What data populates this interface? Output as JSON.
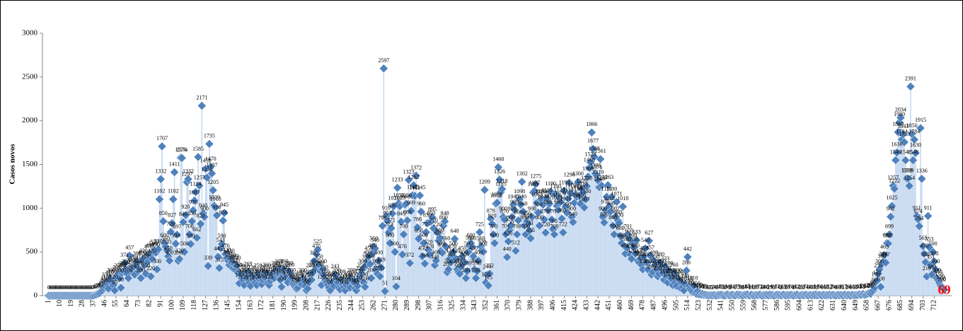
{
  "chart_data": {
    "type": "scatter",
    "y_label": "Casos novos",
    "color": "#4f81bd",
    "drop_line_color": "#c6d9f1",
    "last_label_color": "#ff0000",
    "xlim": [
      -4,
      726
    ],
    "ylim": [
      0,
      3000
    ],
    "yticks": [
      0,
      500,
      1000,
      1500,
      2000,
      2500,
      3000
    ],
    "xticks": [
      1,
      10,
      19,
      28,
      37,
      46,
      55,
      64,
      73,
      82,
      91,
      100,
      109,
      118,
      127,
      136,
      145,
      154,
      163,
      172,
      181,
      190,
      199,
      208,
      217,
      226,
      235,
      244,
      253,
      262,
      271,
      280,
      289,
      298,
      307,
      316,
      325,
      334,
      343,
      352,
      361,
      370,
      379,
      388,
      397,
      406,
      415,
      424,
      433,
      442,
      451,
      460,
      469,
      478,
      487,
      496,
      505,
      514,
      523,
      532,
      541,
      550,
      559,
      568,
      577,
      586,
      595,
      604,
      613,
      622,
      631,
      640,
      649,
      658,
      667,
      676,
      685,
      694,
      703,
      712
    ],
    "x": [
      1,
      2,
      3,
      4,
      5,
      6,
      7,
      8,
      9,
      10,
      11,
      12,
      13,
      14,
      15,
      16,
      17,
      18,
      19,
      20,
      21,
      22,
      23,
      24,
      25,
      26,
      27,
      28,
      29,
      30,
      31,
      32,
      33,
      34,
      35,
      36,
      37,
      38,
      39,
      40,
      41,
      42,
      43,
      44,
      45,
      46,
      47,
      48,
      49,
      50,
      51,
      52,
      53,
      54,
      55,
      56,
      57,
      58,
      59,
      60,
      61,
      62,
      63,
      64,
      65,
      66,
      67,
      68,
      69,
      70,
      71,
      72,
      73,
      74,
      75,
      76,
      77,
      78,
      79,
      80,
      81,
      82,
      83,
      84,
      85,
      86,
      87,
      88,
      89,
      90,
      91,
      92,
      93,
      94,
      95,
      96,
      97,
      98,
      99,
      100,
      101,
      102,
      103,
      104,
      105,
      106,
      107,
      108,
      109,
      110,
      111,
      112,
      113,
      114,
      115,
      116,
      117,
      118,
      119,
      120,
      121,
      122,
      123,
      124,
      125,
      126,
      127,
      128,
      129,
      130,
      131,
      132,
      133,
      134,
      135,
      136,
      137,
      138,
      139,
      140,
      141,
      142,
      143,
      144,
      145,
      146,
      147,
      148,
      149,
      150,
      151,
      152,
      153,
      154,
      155,
      156,
      157,
      158,
      159,
      160,
      161,
      162,
      163,
      164,
      165,
      166,
      167,
      168,
      169,
      170,
      171,
      172,
      173,
      174,
      175,
      176,
      177,
      178,
      179,
      180,
      181,
      182,
      183,
      184,
      185,
      186,
      187,
      188,
      189,
      190,
      191,
      192,
      193,
      194,
      195,
      196,
      197,
      198,
      199,
      200,
      201,
      202,
      203,
      204,
      205,
      206,
      207,
      208,
      209,
      210,
      211,
      212,
      213,
      214,
      215,
      216,
      217,
      218,
      219,
      220,
      221,
      222,
      223,
      224,
      225,
      226,
      227,
      228,
      229,
      230,
      231,
      232,
      233,
      234,
      235,
      236,
      237,
      238,
      239,
      240,
      241,
      242,
      243,
      244,
      245,
      246,
      247,
      248,
      249,
      250,
      251,
      252,
      253,
      254,
      255,
      256,
      257,
      258,
      259,
      260,
      261,
      262,
      263,
      264,
      265,
      266,
      267,
      268,
      269,
      270,
      271,
      272,
      273,
      274,
      275,
      276,
      277,
      278,
      279,
      280,
      281,
      282,
      283,
      284,
      285,
      286,
      287,
      288,
      289,
      290,
      291,
      292,
      293,
      294,
      295,
      296,
      297,
      298,
      299,
      300,
      301,
      302,
      303,
      304,
      305,
      306,
      307,
      308,
      309,
      310,
      311,
      312,
      313,
      314,
      315,
      316,
      317,
      318,
      319,
      320,
      321,
      322,
      323,
      324,
      325,
      326,
      327,
      328,
      329,
      330,
      331,
      332,
      333,
      334,
      335,
      336,
      337,
      338,
      339,
      340,
      341,
      342,
      343,
      344,
      345,
      346,
      347,
      348,
      349,
      350,
      351,
      352,
      353,
      354,
      355,
      356,
      357,
      358,
      359,
      360,
      361,
      362,
      363,
      364,
      365,
      366,
      367,
      368,
      369,
      370,
      371,
      372,
      373,
      374,
      375,
      376,
      377,
      378,
      379,
      380,
      381,
      382,
      383,
      384,
      385,
      386,
      387,
      388,
      389,
      390,
      391,
      392,
      393,
      394,
      395,
      396,
      397,
      398,
      399,
      400,
      401,
      402,
      403,
      404,
      405,
      406,
      407,
      408,
      409,
      410,
      411,
      412,
      413,
      414,
      415,
      416,
      417,
      418,
      419,
      420,
      421,
      422,
      423,
      424,
      425,
      426,
      427,
      428,
      429,
      430,
      431,
      432,
      433,
      434,
      435,
      436,
      437,
      438,
      439,
      440,
      441,
      442,
      443,
      444,
      445,
      446,
      447,
      448,
      449,
      450,
      451,
      452,
      453,
      454,
      455,
      456,
      457,
      458,
      459,
      460,
      461,
      462,
      463,
      464,
      465,
      466,
      467,
      468,
      469,
      470,
      471,
      472,
      473,
      474,
      475,
      476,
      477,
      478,
      479,
      480,
      481,
      482,
      483,
      484,
      485,
      486,
      487,
      488,
      489,
      490,
      491,
      492,
      493,
      494,
      495,
      496,
      497,
      498,
      499,
      500,
      501,
      502,
      503,
      504,
      505,
      506,
      507,
      508,
      509,
      510,
      511,
      512,
      513,
      514,
      515,
      516,
      517,
      518,
      519,
      520,
      521,
      522,
      523,
      524,
      525,
      526,
      527,
      528,
      529,
      530,
      531,
      532,
      533,
      534,
      535,
      536,
      537,
      538,
      539,
      540,
      541,
      542,
      543,
      544,
      545,
      546,
      547,
      548,
      549,
      550,
      551,
      552,
      553,
      554,
      555,
      556,
      557,
      558,
      559,
      560,
      561,
      562,
      563,
      564,
      565,
      566,
      567,
      568,
      569,
      570,
      571,
      572,
      573,
      574,
      575,
      576,
      577,
      578,
      579,
      580,
      581,
      582,
      583,
      584,
      585,
      586,
      587,
      588,
      589,
      590,
      591,
      592,
      593,
      594,
      595,
      596,
      597,
      598,
      599,
      600,
      601,
      602,
      603,
      604,
      605,
      606,
      607,
      608,
      609,
      610,
      611,
      612,
      613,
      614,
      615,
      616,
      617,
      618,
      619,
      620,
      621,
      622,
      623,
      624,
      625,
      626,
      627,
      628,
      629,
      630,
      631,
      632,
      633,
      634,
      635,
      636,
      637,
      638,
      639,
      640,
      641,
      642,
      643,
      644,
      645,
      646,
      647,
      648,
      649,
      650,
      651,
      652,
      653,
      654,
      655,
      656,
      657,
      658,
      659,
      660,
      661,
      662,
      663,
      664,
      665,
      666,
      667,
      668,
      669,
      670,
      671,
      672,
      673,
      674,
      675,
      676,
      677,
      678,
      679,
      680,
      681,
      682,
      683,
      684,
      685,
      686,
      687,
      688,
      689,
      690,
      691,
      692,
      693,
      694,
      695,
      696,
      697,
      698,
      699,
      700,
      701,
      702,
      703,
      704,
      705,
      706,
      707,
      708,
      709,
      710,
      711,
      712,
      713,
      714,
      715,
      716,
      717,
      718,
      719,
      720
    ],
    "values": [
      0,
      0,
      0,
      0,
      0,
      0,
      0,
      0,
      0,
      0,
      0,
      0,
      0,
      0,
      0,
      0,
      0,
      0,
      0,
      0,
      0,
      0,
      0,
      0,
      0,
      0,
      0,
      0,
      0,
      0,
      0,
      0,
      0,
      0,
      0,
      0,
      3,
      8,
      12,
      20,
      25,
      30,
      45,
      60,
      90,
      110,
      150,
      130,
      80,
      170,
      200,
      180,
      120,
      60,
      210,
      230,
      250,
      200,
      90,
      260,
      280,
      371,
      300,
      250,
      200,
      457,
      310,
      290,
      330,
      240,
      350,
      390,
      280,
      300,
      200,
      400,
      420,
      350,
      250,
      380,
      470,
      480,
      220,
      420,
      500,
      520,
      490,
      300,
      530,
      1102,
      1332,
      1707,
      850,
      600,
      560,
      520,
      450,
      400,
      728,
      827,
      1102,
      1411,
      594,
      697,
      396,
      420,
      1576,
      1574,
      840,
      500,
      920,
      1297,
      1332,
      700,
      590,
      850,
      976,
      1087,
      1184,
      662,
      1585,
      1257,
      820,
      2171,
      940,
      900,
      1450,
      1350,
      339,
      1735,
      1470,
      1397,
      1205,
      1029,
      1010,
      918,
      445,
      315,
      543,
      590,
      858,
      945,
      476,
      430,
      400,
      350,
      420,
      370,
      312,
      360,
      300,
      340,
      260,
      140,
      250,
      200,
      180,
      120,
      240,
      200,
      269,
      150,
      110,
      230,
      180,
      200,
      150,
      120,
      250,
      190,
      210,
      130,
      180,
      240,
      200,
      260,
      150,
      120,
      170,
      210,
      240,
      200,
      280,
      250,
      260,
      300,
      180,
      100,
      230,
      300,
      250,
      200,
      150,
      280,
      260,
      200,
      140,
      120,
      100,
      80,
      90,
      150,
      170,
      130,
      200,
      170,
      110,
      60,
      80,
      150,
      250,
      180,
      260,
      395,
      300,
      475,
      525,
      350,
      280,
      120,
      300,
      230,
      180,
      150,
      120,
      90,
      60,
      140,
      160,
      110,
      243,
      200,
      150,
      90,
      70,
      180,
      130,
      100,
      60,
      120,
      160,
      140,
      90,
      200,
      170,
      150,
      80,
      60,
      110,
      190,
      220,
      250,
      300,
      150,
      100,
      350,
      400,
      450,
      360,
      200,
      480,
      560,
      540,
      300,
      250,
      400,
      220,
      319,
      798,
      2597,
      51,
      910,
      853,
      723,
      600,
      771,
      939,
      1021,
      500,
      104,
      1233,
      1055,
      1023,
      845,
      470,
      700,
      1040,
      1050,
      860,
      1323,
      372,
      969,
      1147,
      1262,
      1141,
      1372,
      780,
      650,
      1145,
      960,
      450,
      600,
      366,
      725,
      830,
      520,
      470,
      850,
      895,
      770,
      348,
      400,
      720,
      628,
      660,
      510,
      490,
      800,
      848,
      560,
      267,
      300,
      424,
      380,
      470,
      500,
      648,
      420,
      300,
      270,
      250,
      330,
      450,
      400,
      380,
      200,
      280,
      500,
      569,
      600,
      560,
      450,
      300,
      200,
      280,
      400,
      725,
      560,
      520,
      502,
      1209,
      150,
      240,
      115,
      252,
      878,
      820,
      700,
      600,
      1052,
      1062,
      1468,
      1326,
      1185,
      1219,
      900,
      870,
      701,
      440,
      620,
      750,
      800,
      900,
      1040,
      980,
      512,
      700,
      860,
      1098,
      1040,
      1302,
      960,
      800,
      700,
      850,
      820,
      741,
      655,
      900,
      1181,
      1197,
      1275,
      1063,
      950,
      800,
      1100,
      1094,
      1040,
      870,
      720,
      1110,
      980,
      1050,
      1190,
      870,
      760,
      700,
      1160,
      1025,
      980,
      1120,
      1070,
      880,
      722,
      1199,
      1016,
      950,
      1110,
      1290,
      1170,
      900,
      840,
      1060,
      1160,
      1130,
      1300,
      1140,
      1050,
      1220,
      1181,
      1007,
      1100,
      1250,
      1360,
      1460,
      1523,
      1866,
      1677,
      1588,
      1395,
      1376,
      1319,
      1240,
      1561,
      1259,
      900,
      836,
      977,
      1130,
      1263,
      1018,
      960,
      1130,
      800,
      700,
      902,
      1071,
      860,
      830,
      680,
      600,
      1018,
      570,
      480,
      550,
      701,
      650,
      470,
      420,
      600,
      550,
      480,
      633,
      400,
      380,
      420,
      350,
      300,
      450,
      540,
      380,
      300,
      627,
      457,
      240,
      270,
      400,
      350,
      300,
      220,
      250,
      380,
      300,
      260,
      180,
      333,
      220,
      150,
      280,
      200,
      190,
      120,
      260,
      150,
      110,
      200,
      180,
      90,
      150,
      100,
      60,
      130,
      286,
      442,
      110,
      80,
      60,
      40,
      110,
      30,
      20,
      50,
      15,
      30,
      10,
      20,
      8,
      12,
      5,
      6,
      0,
      3,
      5,
      2,
      8,
      4,
      0,
      6,
      10,
      7,
      12,
      5,
      3,
      0,
      9,
      14,
      6,
      2,
      8,
      11,
      4,
      0,
      7,
      13,
      5,
      9,
      3,
      0,
      6,
      10,
      8,
      15,
      4,
      2,
      11,
      6,
      0,
      3,
      9,
      5,
      7,
      12,
      3,
      0,
      8,
      4,
      10,
      6,
      2,
      14,
      5,
      9,
      0,
      3,
      7,
      11,
      4,
      8,
      2,
      6,
      13,
      5,
      0,
      9,
      3,
      7,
      10,
      4,
      1,
      8,
      6,
      12,
      3,
      0,
      5,
      9,
      2,
      7,
      11,
      4,
      0,
      8,
      6,
      3,
      10,
      5,
      14,
      2,
      7,
      9,
      4,
      0,
      11,
      6,
      3,
      8,
      5,
      12,
      2,
      7,
      9,
      4,
      0,
      6,
      10,
      3,
      8,
      5,
      1,
      13,
      7,
      2,
      9,
      4,
      0,
      11,
      6,
      3,
      8,
      5,
      10,
      15,
      8,
      12,
      20,
      9,
      14,
      18,
      25,
      30,
      20,
      40,
      60,
      90,
      150,
      170,
      250,
      300,
      100,
      360,
      384,
      465,
      377,
      600,
      595,
      699,
      902,
      1025,
      1257,
      1222,
      1549,
      1636,
      1869,
      1980,
      2034,
      1784,
      1843,
      1755,
      1548,
      1339,
      1339,
      1254,
      2391,
      1850,
      1548,
      1784,
      1630,
      911,
      874,
      794,
      1915,
      1336,
      565,
      478,
      382,
      219,
      911,
      553,
      351,
      240,
      500,
      390,
      300,
      200,
      180,
      150,
      120,
      100,
      90,
      69
    ]
  }
}
